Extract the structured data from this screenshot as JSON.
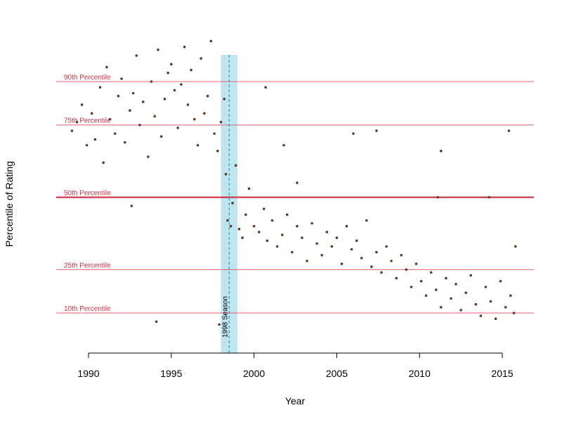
{
  "chart_data": {
    "type": "scatter",
    "title": "",
    "xlabel": "Year",
    "ylabel": "Percentile of Rating",
    "xlim": [
      1987.6,
      2016.7
    ],
    "ylim": [
      -0.03,
      1.06
    ],
    "xticks": [
      1990,
      1995,
      2000,
      2005,
      2010,
      2015
    ],
    "xtick_labels": [
      "1990",
      "1995",
      "2000",
      "2005",
      "2010",
      "2015"
    ],
    "grid": false,
    "legend": "none",
    "reference_lines": [
      {
        "label": "90th Percentile",
        "y": 0.9,
        "emphasis": false
      },
      {
        "label": "75th Percentile",
        "y": 0.75,
        "emphasis": false
      },
      {
        "label": "50th Percentile",
        "y": 0.5,
        "emphasis": true
      },
      {
        "label": "25th Percentile",
        "y": 0.25,
        "emphasis": false
      },
      {
        "label": "10th Percentile",
        "y": 0.1,
        "emphasis": false
      }
    ],
    "highlight": {
      "label": "1998 Season",
      "x_start": 1998.0,
      "x_end": 1999.0,
      "x_line": 1998.5
    },
    "colors": {
      "points": "#5a3a2a",
      "reference_line": "#e06070",
      "median_line": "#cc2233",
      "reference_label": "#cc3344",
      "highlight_band": "#bfe6ee",
      "highlight_line": "#2aa0b8",
      "highlight_label": "#2aa0b8"
    },
    "points": [
      {
        "x": 1989.0,
        "y": 0.73
      },
      {
        "x": 1989.3,
        "y": 0.76
      },
      {
        "x": 1989.6,
        "y": 0.82
      },
      {
        "x": 1989.9,
        "y": 0.68
      },
      {
        "x": 1990.2,
        "y": 0.79
      },
      {
        "x": 1990.4,
        "y": 0.7
      },
      {
        "x": 1990.7,
        "y": 0.88
      },
      {
        "x": 1990.9,
        "y": 0.62
      },
      {
        "x": 1991.1,
        "y": 0.95
      },
      {
        "x": 1991.3,
        "y": 0.77
      },
      {
        "x": 1991.6,
        "y": 0.72
      },
      {
        "x": 1991.8,
        "y": 0.85
      },
      {
        "x": 1992.0,
        "y": 0.91
      },
      {
        "x": 1992.2,
        "y": 0.69
      },
      {
        "x": 1992.5,
        "y": 0.8
      },
      {
        "x": 1992.7,
        "y": 0.86
      },
      {
        "x": 1992.9,
        "y": 0.99
      },
      {
        "x": 1993.1,
        "y": 0.75
      },
      {
        "x": 1993.3,
        "y": 0.83
      },
      {
        "x": 1993.6,
        "y": 0.64
      },
      {
        "x": 1993.8,
        "y": 0.9
      },
      {
        "x": 1994.0,
        "y": 0.78
      },
      {
        "x": 1994.2,
        "y": 1.01
      },
      {
        "x": 1994.4,
        "y": 0.71
      },
      {
        "x": 1994.6,
        "y": 0.84
      },
      {
        "x": 1994.8,
        "y": 0.93
      },
      {
        "x": 1995.0,
        "y": 0.96
      },
      {
        "x": 1995.2,
        "y": 0.87
      },
      {
        "x": 1995.4,
        "y": 0.74
      },
      {
        "x": 1995.6,
        "y": 0.89
      },
      {
        "x": 1995.8,
        "y": 1.02
      },
      {
        "x": 1996.0,
        "y": 0.82
      },
      {
        "x": 1996.2,
        "y": 0.94
      },
      {
        "x": 1996.4,
        "y": 0.77
      },
      {
        "x": 1996.6,
        "y": 0.68
      },
      {
        "x": 1996.8,
        "y": 0.98
      },
      {
        "x": 1997.0,
        "y": 0.79
      },
      {
        "x": 1997.2,
        "y": 0.85
      },
      {
        "x": 1997.4,
        "y": 1.04
      },
      {
        "x": 1997.6,
        "y": 0.72
      },
      {
        "x": 1997.8,
        "y": 0.66
      },
      {
        "x": 1998.0,
        "y": 0.76
      },
      {
        "x": 1998.2,
        "y": 0.84
      },
      {
        "x": 1998.3,
        "y": 0.58
      },
      {
        "x": 1998.4,
        "y": 0.42
      },
      {
        "x": 1998.6,
        "y": 0.4
      },
      {
        "x": 1998.7,
        "y": 0.48
      },
      {
        "x": 1998.9,
        "y": 0.61
      },
      {
        "x": 1999.1,
        "y": 0.39
      },
      {
        "x": 1999.3,
        "y": 0.36
      },
      {
        "x": 1999.5,
        "y": 0.44
      },
      {
        "x": 1999.7,
        "y": 0.53
      },
      {
        "x": 2000.0,
        "y": 0.4
      },
      {
        "x": 2000.3,
        "y": 0.38
      },
      {
        "x": 2000.6,
        "y": 0.46
      },
      {
        "x": 2000.8,
        "y": 0.35
      },
      {
        "x": 2001.1,
        "y": 0.42
      },
      {
        "x": 2001.4,
        "y": 0.33
      },
      {
        "x": 2001.7,
        "y": 0.37
      },
      {
        "x": 2002.0,
        "y": 0.44
      },
      {
        "x": 2002.3,
        "y": 0.31
      },
      {
        "x": 2002.6,
        "y": 0.4
      },
      {
        "x": 2002.9,
        "y": 0.36
      },
      {
        "x": 2003.2,
        "y": 0.28
      },
      {
        "x": 2003.5,
        "y": 0.41
      },
      {
        "x": 2003.8,
        "y": 0.34
      },
      {
        "x": 2004.1,
        "y": 0.3
      },
      {
        "x": 2004.4,
        "y": 0.38
      },
      {
        "x": 2004.7,
        "y": 0.33
      },
      {
        "x": 2005.0,
        "y": 0.36
      },
      {
        "x": 2005.3,
        "y": 0.27
      },
      {
        "x": 2005.6,
        "y": 0.4
      },
      {
        "x": 2005.9,
        "y": 0.32
      },
      {
        "x": 2006.2,
        "y": 0.35
      },
      {
        "x": 2006.5,
        "y": 0.29
      },
      {
        "x": 2006.8,
        "y": 0.42
      },
      {
        "x": 2007.1,
        "y": 0.26
      },
      {
        "x": 2007.4,
        "y": 0.31
      },
      {
        "x": 2007.7,
        "y": 0.24
      },
      {
        "x": 2008.0,
        "y": 0.33
      },
      {
        "x": 2008.3,
        "y": 0.28
      },
      {
        "x": 2008.6,
        "y": 0.22
      },
      {
        "x": 2008.9,
        "y": 0.3
      },
      {
        "x": 2009.2,
        "y": 0.25
      },
      {
        "x": 2009.5,
        "y": 0.19
      },
      {
        "x": 2009.8,
        "y": 0.27
      },
      {
        "x": 2010.1,
        "y": 0.21
      },
      {
        "x": 2010.4,
        "y": 0.16
      },
      {
        "x": 2010.7,
        "y": 0.24
      },
      {
        "x": 2011.0,
        "y": 0.18
      },
      {
        "x": 2011.3,
        "y": 0.12
      },
      {
        "x": 2011.6,
        "y": 0.22
      },
      {
        "x": 2011.9,
        "y": 0.15
      },
      {
        "x": 2012.2,
        "y": 0.2
      },
      {
        "x": 2012.5,
        "y": 0.11
      },
      {
        "x": 2012.8,
        "y": 0.17
      },
      {
        "x": 2013.1,
        "y": 0.23
      },
      {
        "x": 2013.4,
        "y": 0.13
      },
      {
        "x": 2013.7,
        "y": 0.09
      },
      {
        "x": 2014.0,
        "y": 0.19
      },
      {
        "x": 2014.3,
        "y": 0.14
      },
      {
        "x": 2014.6,
        "y": 0.08
      },
      {
        "x": 2014.9,
        "y": 0.21
      },
      {
        "x": 2015.2,
        "y": 0.12
      },
      {
        "x": 2015.5,
        "y": 0.16
      },
      {
        "x": 2015.7,
        "y": 0.1
      },
      {
        "x": 2015.8,
        "y": 0.33
      },
      {
        "x": 1994.1,
        "y": 0.07
      },
      {
        "x": 1997.9,
        "y": 0.06
      },
      {
        "x": 2000.7,
        "y": 0.88
      },
      {
        "x": 2001.8,
        "y": 0.68
      },
      {
        "x": 2002.6,
        "y": 0.55
      },
      {
        "x": 2006.0,
        "y": 0.72
      },
      {
        "x": 2007.4,
        "y": 0.73
      },
      {
        "x": 2011.3,
        "y": 0.66
      },
      {
        "x": 2014.2,
        "y": 0.5
      },
      {
        "x": 2015.4,
        "y": 0.73
      },
      {
        "x": 2011.1,
        "y": 0.5
      },
      {
        "x": 1992.6,
        "y": 0.47
      }
    ]
  }
}
